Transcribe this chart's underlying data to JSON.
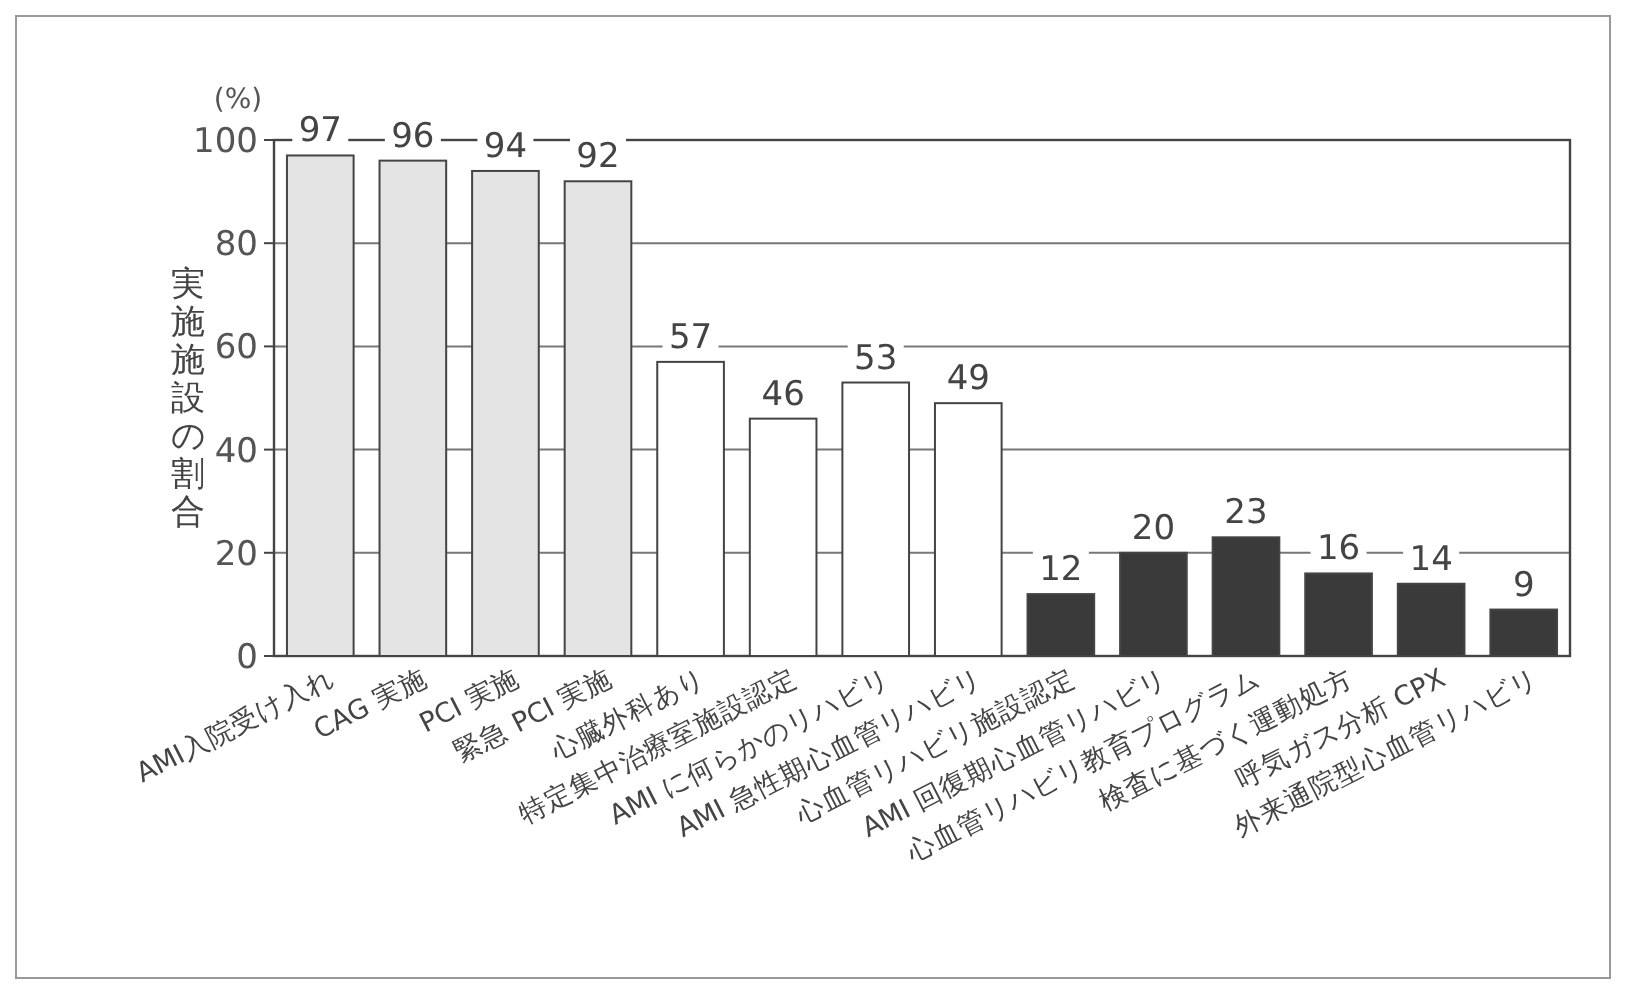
{
  "chart_data": {
    "type": "bar",
    "ylabel": "実施施設の割合",
    "annotations": [
      "(%)"
    ],
    "categories": [
      "AMI入院受け入れ",
      "CAG 実施",
      "PCI 実施",
      "緊急 PCI 実施",
      "心臓外科あり",
      "特定集中治療室施設認定",
      "AMI に何らかのリハビリ",
      "AMI 急性期心血管リハビリ",
      "心血管リハビリ施設認定",
      "AMI 回復期心血管リハビリ",
      "心血管リハビリ教育プログラム",
      "検査に基づく運動処方",
      "呼気ガス分析 CPX",
      "外来通院型心血管リハビリ"
    ],
    "values": [
      97,
      96,
      94,
      92,
      57,
      46,
      53,
      49,
      12,
      20,
      23,
      16,
      14,
      9
    ],
    "colors": [
      "#e4e4e4",
      "#e4e4e4",
      "#e4e4e4",
      "#e4e4e4",
      "#ffffff",
      "#ffffff",
      "#ffffff",
      "#ffffff",
      "#3a3a3a",
      "#3a3a3a",
      "#3a3a3a",
      "#3a3a3a",
      "#3a3a3a",
      "#3a3a3a"
    ],
    "ylim": [
      0,
      100
    ],
    "yticks": [
      0,
      20,
      40,
      60,
      80,
      100
    ],
    "grid": "y",
    "data_labels": true
  }
}
